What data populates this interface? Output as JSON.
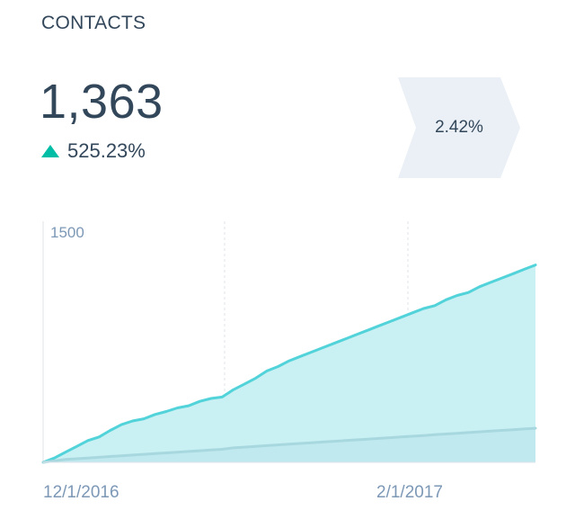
{
  "header": {
    "title": "CONTACTS",
    "total": "1,363",
    "change_pct": "525.23%",
    "change_direction": "up",
    "conversion_rate": "2.42%"
  },
  "colors": {
    "primary_line": "#51d3d9",
    "primary_fill": "#c9f0f3",
    "secondary_line": "#a8d8df",
    "secondary_fill": "#bfe8ee",
    "up_arrow": "#00bda5",
    "badge_bg": "#eaf0f6"
  },
  "chart_data": {
    "type": "area",
    "ylim": [
      0,
      1500
    ],
    "y_tick_labels": [
      "1500"
    ],
    "x_tick_labels": [
      "12/1/2016",
      "2/1/2017"
    ],
    "x_tick_positions": [
      0,
      0.75
    ],
    "grid": true,
    "series": [
      {
        "values": [
          0,
          30,
          70,
          110,
          150,
          175,
          220,
          260,
          285,
          300,
          330,
          350,
          375,
          390,
          420,
          440,
          450,
          500,
          540,
          580,
          630,
          660,
          700,
          730,
          760,
          790,
          820,
          850,
          880,
          910,
          940,
          970,
          1000,
          1030,
          1060,
          1080,
          1120,
          1150,
          1170,
          1210,
          1240,
          1270,
          1300,
          1330,
          1360
        ]
      },
      {
        "values": [
          0,
          10,
          20,
          25,
          30,
          35,
          40,
          45,
          50,
          55,
          60,
          65,
          70,
          75,
          80,
          85,
          90,
          100,
          105,
          110,
          115,
          120,
          125,
          130,
          135,
          140,
          145,
          150,
          155,
          160,
          165,
          170,
          175,
          180,
          185,
          190,
          195,
          200,
          205,
          210,
          215,
          220,
          225,
          230,
          235
        ]
      }
    ]
  }
}
